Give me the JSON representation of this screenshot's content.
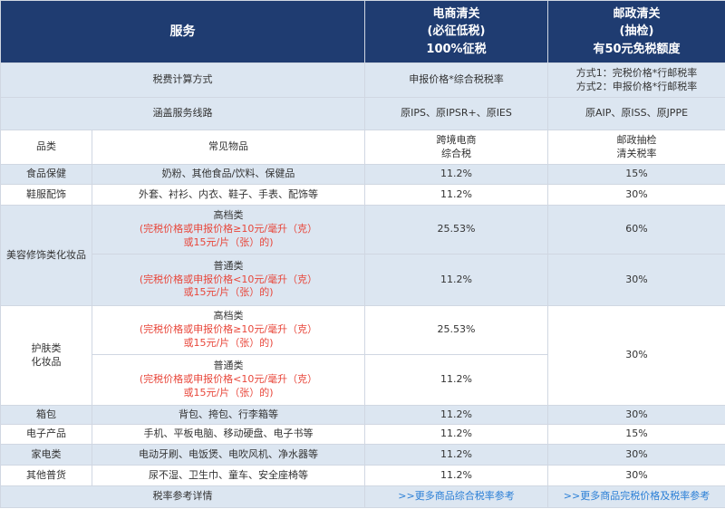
{
  "header": {
    "service": "服务",
    "ecommerce": [
      "电商清关",
      "(必征低税)",
      "100%征税"
    ],
    "postal": [
      "邮政清关",
      "(抽检)",
      "有50元免税额度"
    ]
  },
  "tax_method": {
    "label": "税费计算方式",
    "ecommerce": "申报价格*综合税税率",
    "postal": [
      "方式1：完税价格*行邮税率",
      "方式2：申报价格*行邮税率"
    ]
  },
  "routes": {
    "label": "涵盖服务线路",
    "ecommerce": "原IPS、原IPSR+、原IES",
    "postal": "原AIP、原ISS、原JPPE"
  },
  "columns": {
    "category": "品类",
    "items": "常见物品",
    "ecommerce": [
      "跨境电商",
      "综合税"
    ],
    "postal": [
      "邮政抽检",
      "清关税率"
    ]
  },
  "rows": [
    {
      "category": "食品保健",
      "items": "奶粉、其他食品/饮料、保健品",
      "ecommerce": "11.2%",
      "postal": "15%"
    },
    {
      "category": "鞋服配饰",
      "items": "外套、衬衫、内衣、鞋子、手表、配饰等",
      "ecommerce": "11.2%",
      "postal": "30%"
    }
  ],
  "cosmetics": {
    "category": "美容修饰类化妆品",
    "high": {
      "title": "高档类",
      "note": [
        "(完税价格或申报价格≥10元/毫升（克）",
        "或15元/片（张）的)"
      ],
      "ecommerce": "25.53%",
      "postal": "60%"
    },
    "normal": {
      "title": "普通类",
      "note": [
        "(完税价格或申报价格<10元/毫升（克）",
        "或15元/片（张）的)"
      ],
      "ecommerce": "11.2%",
      "postal": "30%"
    }
  },
  "skincare": {
    "category": [
      "护肤类",
      "化妆品"
    ],
    "high": {
      "title": "高档类",
      "note": [
        "(完税价格或申报价格≥10元/毫升（克）",
        "或15元/片（张）的)"
      ],
      "ecommerce": "25.53%"
    },
    "normal": {
      "title": "普通类",
      "note": [
        "(完税价格或申报价格<10元/毫升（克）",
        "或15元/片（张）的)"
      ],
      "ecommerce": "11.2%"
    },
    "postal": "30%"
  },
  "rows2": [
    {
      "category": "箱包",
      "items": "背包、挎包、行李箱等",
      "ecommerce": "11.2%",
      "postal": "30%"
    },
    {
      "category": "电子产品",
      "items": "手机、平板电脑、移动硬盘、电子书等",
      "ecommerce": "11.2%",
      "postal": "15%"
    },
    {
      "category": "家电类",
      "items": "电动牙刷、电饭煲、电吹风机、净水器等",
      "ecommerce": "11.2%",
      "postal": "30%"
    },
    {
      "category": "其他普货",
      "items": "尿不湿、卫生巾、童车、安全座椅等",
      "ecommerce": "11.2%",
      "postal": "30%"
    }
  ],
  "footer": {
    "label": "税率参考详情",
    "ecommerce_link": ">>更多商品综合税率参考",
    "postal_link": ">>更多商品完税价格及税率参考"
  },
  "colors": {
    "header_bg": "#1f3c71",
    "shade": "#dce6f1",
    "note_red": "#e8463a",
    "link_blue": "#2b7fd6"
  }
}
